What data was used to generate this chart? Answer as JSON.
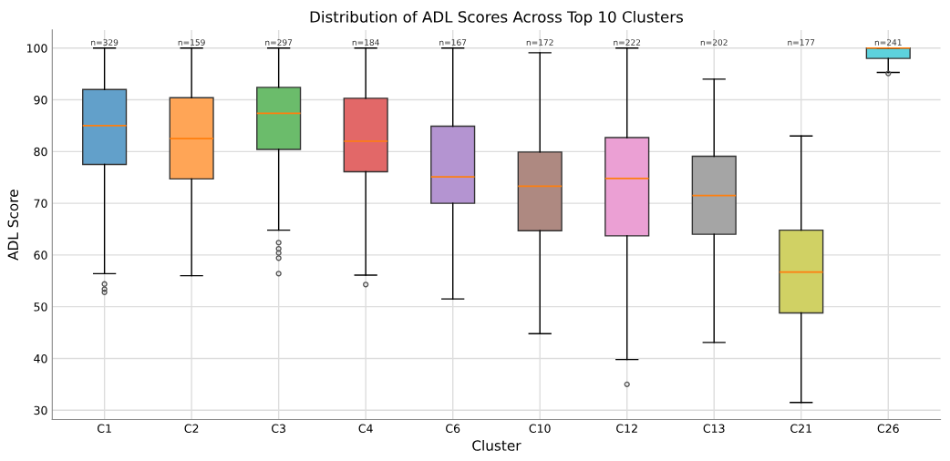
{
  "chart_data": {
    "type": "box",
    "title": "Distribution of ADL Scores Across Top 10 Clusters",
    "xlabel": "Cluster",
    "ylabel": "ADL Score",
    "categories": [
      "C1",
      "C2",
      "C3",
      "C4",
      "C6",
      "C10",
      "C12",
      "C13",
      "C21",
      "C26"
    ],
    "colors": [
      "#62a0ca",
      "#ffa556",
      "#6bbc6b",
      "#e26868",
      "#b494d1",
      "#ae8981",
      "#eba0d4",
      "#a5a5a5",
      "#d0d164",
      "#5dd2dd"
    ],
    "boxes": [
      {
        "low": 56.4,
        "q1": 77.5,
        "median": 85.0,
        "q3": 92.0,
        "high": 100,
        "outliers": [
          54.4,
          53.4,
          52.8
        ]
      },
      {
        "low": 56.0,
        "q1": 74.7,
        "median": 82.5,
        "q3": 90.4,
        "high": 100
      },
      {
        "low": 64.8,
        "q1": 80.4,
        "median": 87.4,
        "q3": 92.4,
        "high": 100,
        "outliers": [
          62.4,
          61.2,
          60.4,
          59.4,
          56.4
        ]
      },
      {
        "low": 56.1,
        "q1": 76.1,
        "median": 82.0,
        "q3": 90.3,
        "high": 100,
        "outliers": [
          54.3
        ]
      },
      {
        "low": 51.5,
        "q1": 70.0,
        "median": 75.1,
        "q3": 84.9,
        "high": 100
      },
      {
        "low": 44.8,
        "q1": 64.7,
        "median": 73.3,
        "q3": 79.9,
        "high": 99.1
      },
      {
        "low": 39.8,
        "q1": 63.7,
        "median": 74.8,
        "q3": 82.7,
        "high": 100,
        "outliers": [
          35.0
        ]
      },
      {
        "low": 43.1,
        "q1": 64.0,
        "median": 71.5,
        "q3": 79.1,
        "high": 94.0
      },
      {
        "low": 31.5,
        "q1": 48.8,
        "median": 56.7,
        "q3": 64.8,
        "high": 83.0
      },
      {
        "low": 95.3,
        "q1": 98.0,
        "median": 100,
        "q3": 100,
        "high": 100,
        "outliers": [
          95.1
        ]
      }
    ],
    "annotations": [
      "n=329",
      "n=159",
      "n=297",
      "n=184",
      "n=167",
      "n=172",
      "n=222",
      "n=202",
      "n=177",
      "n=241"
    ],
    "ylim": [
      28.2,
      103.5
    ],
    "yticks": [
      30,
      40,
      50,
      60,
      70,
      80,
      90,
      100
    ],
    "grid": true
  }
}
